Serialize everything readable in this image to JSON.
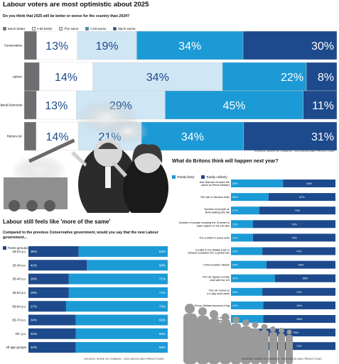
{
  "chart_data": [
    {
      "type": "bar",
      "orientation": "horizontal",
      "stacked": true,
      "title": "Labour voters are most optimistic about 2025",
      "subtitle": "Do you think that 2025 will be better or worse for the country than 2024?",
      "categories": [
        "Conservative",
        "Labour",
        "Liberal Democrat",
        "Reform UK"
      ],
      "series": [
        {
          "name": "Much better",
          "values": [
            4,
            4,
            4,
            4
          ],
          "labels": [
            "",
            "",
            "",
            ""
          ]
        },
        {
          "name": "A bit better",
          "values": [
            13,
            14,
            13,
            14
          ],
          "labels": [
            "13%",
            "14%",
            "13%",
            "14%"
          ]
        },
        {
          "name": "The same",
          "values": [
            19,
            34,
            29,
            21
          ],
          "labels": [
            "19%",
            "34%",
            "29%",
            "21%"
          ]
        },
        {
          "name": "A bit worse",
          "values": [
            34,
            22,
            45,
            34
          ],
          "labels": [
            "34%",
            "22%",
            "45%",
            "34%"
          ]
        },
        {
          "name": "Much worse",
          "values": [
            30,
            8,
            11,
            31
          ],
          "labels": [
            "30%",
            "8%",
            "11%",
            "31%"
          ]
        }
      ],
      "colors": [
        "#6d6e71",
        "#ffffff",
        "#cfe6f5",
        "#1b9ad6",
        "#1d4a8c"
      ],
      "source": "SOURCE: MORE IN COMMON · 2025 MOOD AND PREDICTIONS"
    },
    {
      "type": "bar",
      "orientation": "horizontal",
      "stacked": true,
      "title": "Labour still feels like 'more of the same'",
      "subtitle": "Compared to the previous Conservative government, would you say that the new Labour government...",
      "categories": [
        "18-24 y.o.",
        "25-34 y.o.",
        "35-44 y.o.",
        "45-54 y.o.",
        "55-64 y.o.",
        "65-74 y.o.",
        "75+ y.o.",
        "All age groups"
      ],
      "series": [
        {
          "name": "Feels genuinely different",
          "values": [
            36,
            42,
            29,
            29,
            27,
            34,
            34,
            34
          ]
        },
        {
          "name": "Feels like more of the same",
          "values": [
            64,
            58,
            71,
            71,
            73,
            66,
            66,
            66
          ]
        }
      ],
      "colors": [
        "#1d4a8c",
        "#1b9ad6"
      ],
      "source": "SOURCE: MORE IN COMMON · 2025 MOOD AND PREDICTIONS"
    },
    {
      "type": "bar",
      "orientation": "horizontal",
      "stacked": true,
      "title": "What do Britons think will happen next year?",
      "categories": [
        "Keir Starmer remains the same as Prime Minister",
        "The war in Ukraine ends",
        "Number of people on NHS waiting lists fall",
        "Number of people crossing the Channel to claim asylum in the UK falls",
        "The conflict in Gaza ends",
        "Conflict in the Middle East or Ukraine escalates into a global war",
        "China invades Taiwan",
        "The UK agrees a trade deal with the US",
        "The UK moves to a 4-day work week",
        "Prince William becomes King",
        "There will be a major Brexit referendum",
        "Britain joins another European conflict",
        "At least one general election is called in England"
      ],
      "series": [
        {
          "name": "Totally likely",
          "values": [
            50,
            36,
            27,
            21,
            21,
            30,
            34,
            42,
            30,
            31,
            31,
            24,
            30
          ]
        },
        {
          "name": "Totally unlikely",
          "values": [
            50,
            64,
            73,
            79,
            79,
            70,
            66,
            58,
            70,
            69,
            69,
            76,
            70
          ],
          "labels": [
            "50%",
            "64%",
            "73%",
            "79%",
            "79%",
            "70%",
            "66%",
            "58%",
            "70%",
            "69%",
            "69%",
            "76%",
            "70%"
          ]
        }
      ],
      "labels_likely": [
        "50%",
        "36%",
        "27%",
        "21%",
        "21%",
        "30%",
        "34%",
        "42%",
        "30%",
        "31%",
        "31%",
        "24%",
        "30%"
      ],
      "colors": [
        "#1b9ad6",
        "#1d4a8c"
      ],
      "source": "SOURCE: MORE IN COMMON · 2025 MOOD AND PREDICTIONS"
    }
  ]
}
